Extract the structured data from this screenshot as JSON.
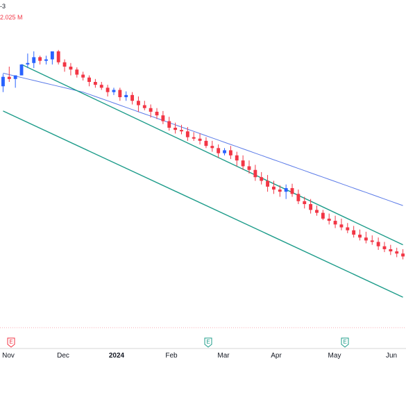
{
  "header": {
    "symbol_fragment": "-3",
    "volume_fragment": "2.025 M"
  },
  "colors": {
    "up": "#2962ff",
    "down": "#f23645",
    "ma": "#5b7be8",
    "trend": "#1d9c8a",
    "earnings": "#f23645",
    "dividend": "#1d9c8a"
  },
  "events": [
    {
      "label": "E",
      "type": "earnings",
      "x_label": "Nov"
    },
    {
      "label": "E",
      "type": "dividend",
      "x_label": "Feb-Mar"
    },
    {
      "label": "E",
      "type": "dividend",
      "x_label": "May"
    }
  ],
  "chart_data": {
    "type": "candlestick",
    "title": "",
    "xlabel": "",
    "ylabel": "",
    "x_ticks": [
      "Nov",
      "Dec",
      "2024",
      "Feb",
      "Mar",
      "Apr",
      "May",
      "Jun"
    ],
    "ohlc": [
      [
        270,
        262,
        287,
        283
      ],
      [
        283,
        276,
        297,
        280
      ],
      [
        280,
        268,
        285,
        285
      ],
      [
        285,
        285,
        300,
        300
      ],
      [
        300,
        295,
        315,
        302
      ],
      [
        302,
        295,
        318,
        310
      ],
      [
        310,
        300,
        312,
        305
      ],
      [
        305,
        300,
        312,
        307
      ],
      [
        307,
        300,
        318,
        318
      ],
      [
        318,
        300,
        320,
        303
      ],
      [
        303,
        290,
        307,
        297
      ],
      [
        297,
        285,
        302,
        293
      ],
      [
        293,
        282,
        296,
        286
      ],
      [
        286,
        278,
        290,
        282
      ],
      [
        282,
        270,
        285,
        276
      ],
      [
        276,
        268,
        280,
        272
      ],
      [
        272,
        265,
        276,
        268
      ],
      [
        268,
        256,
        272,
        262
      ],
      [
        262,
        258,
        268,
        265
      ],
      [
        265,
        250,
        268,
        255
      ],
      [
        255,
        250,
        263,
        258
      ],
      [
        258,
        245,
        262,
        250
      ],
      [
        250,
        235,
        256,
        244
      ],
      [
        244,
        237,
        250,
        240
      ],
      [
        240,
        227,
        245,
        235
      ],
      [
        235,
        225,
        240,
        230
      ],
      [
        230,
        218,
        236,
        222
      ],
      [
        222,
        209,
        228,
        213
      ],
      [
        213,
        205,
        220,
        210
      ],
      [
        210,
        204,
        217,
        208
      ],
      [
        208,
        195,
        214,
        200
      ],
      [
        200,
        195,
        207,
        198
      ],
      [
        198,
        190,
        205,
        195
      ],
      [
        195,
        185,
        200,
        188
      ],
      [
        188,
        180,
        195,
        185
      ],
      [
        185,
        172,
        190,
        178
      ],
      [
        178,
        175,
        185,
        182
      ],
      [
        182,
        170,
        188,
        175
      ],
      [
        175,
        160,
        180,
        168
      ],
      [
        168,
        155,
        175,
        160
      ],
      [
        160,
        150,
        168,
        155
      ],
      [
        155,
        140,
        162,
        145
      ],
      [
        145,
        135,
        152,
        140
      ],
      [
        140,
        125,
        148,
        132
      ],
      [
        132,
        122,
        140,
        128
      ],
      [
        128,
        118,
        134,
        125
      ],
      [
        125,
        115,
        135,
        130
      ],
      [
        130,
        118,
        136,
        122
      ],
      [
        122,
        108,
        128,
        112
      ],
      [
        112,
        102,
        118,
        108
      ],
      [
        108,
        95,
        115,
        100
      ],
      [
        100,
        92,
        106,
        96
      ],
      [
        96,
        86,
        100,
        88
      ],
      [
        88,
        80,
        95,
        85
      ],
      [
        85,
        75,
        92,
        80
      ],
      [
        80,
        72,
        88,
        76
      ],
      [
        76,
        68,
        82,
        72
      ],
      [
        72,
        62,
        78,
        66
      ],
      [
        66,
        58,
        73,
        62
      ],
      [
        62,
        54,
        70,
        58
      ],
      [
        58,
        52,
        65,
        56
      ],
      [
        56,
        45,
        62,
        50
      ],
      [
        50,
        42,
        56,
        46
      ],
      [
        46,
        38,
        52,
        43
      ],
      [
        43,
        35,
        48,
        40
      ],
      [
        40,
        32,
        46,
        36
      ]
    ],
    "ma_series": [
      288,
      286,
      284,
      282,
      280,
      278,
      276,
      274,
      272,
      270,
      268,
      266,
      264,
      262,
      259,
      256,
      253,
      250,
      247,
      244,
      241,
      238,
      235,
      232,
      229,
      226,
      223,
      220,
      217,
      214,
      211,
      208,
      205,
      202,
      199,
      196,
      193,
      190,
      187,
      184,
      181,
      178,
      175,
      172,
      169,
      166,
      163,
      160,
      157,
      154,
      151,
      148,
      145,
      142,
      139,
      136,
      133,
      130,
      127,
      124,
      121,
      118,
      115,
      112,
      109,
      106
    ],
    "trendlines": [
      {
        "from": {
          "i": 3,
          "v": 300
        },
        "to": {
          "i": 65,
          "v": 52
        }
      },
      {
        "from": {
          "i": 0,
          "v": 236
        },
        "to": {
          "i": 65,
          "v": -20
        }
      }
    ],
    "ylim": [
      -60,
      360
    ],
    "grid": false
  }
}
